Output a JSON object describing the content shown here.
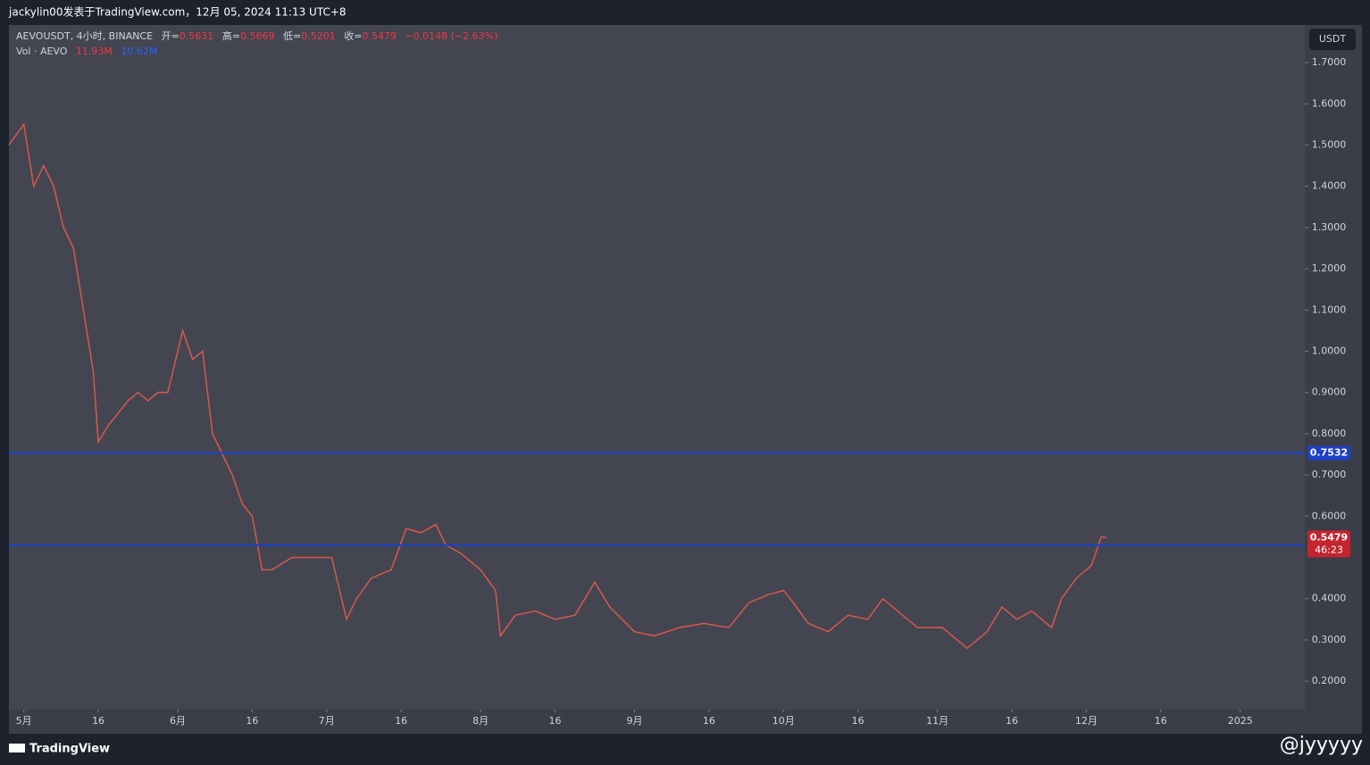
{
  "header": {
    "title": "jackylin00发表于TradingView.com，12月 05, 2024 11:13 UTC+8"
  },
  "legend": {
    "symbol": "AEVOUSDT, 4小时, BINANCE",
    "open_label": "开=",
    "open": "0.5631",
    "high_label": "高=",
    "high": "0.5669",
    "low_label": "低=",
    "low": "0.5201",
    "close_label": "收=",
    "close": "0.5479",
    "change": "−0.0148 (−2.63%)",
    "vol_label": "Vol · AEVO",
    "vol1": "11.93M",
    "vol2": "10.62M"
  },
  "currency": "USDT",
  "chart_data": {
    "type": "line",
    "color": "#d9574f",
    "xlim": [
      "2024-04-28",
      "2025-01-14"
    ],
    "ylim": [
      0.131,
      1.791
    ],
    "yticks": [
      {
        "value": 1.7,
        "label": "1.7000"
      },
      {
        "value": 1.6,
        "label": "1.6000"
      },
      {
        "value": 1.5,
        "label": "1.5000"
      },
      {
        "value": 1.4,
        "label": "1.4000"
      },
      {
        "value": 1.3,
        "label": "1.3000"
      },
      {
        "value": 1.2,
        "label": "1.2000"
      },
      {
        "value": 1.1,
        "label": "1.1000"
      },
      {
        "value": 1.0,
        "label": "1.0000"
      },
      {
        "value": 0.9,
        "label": "0.9000"
      },
      {
        "value": 0.8,
        "label": "0.8000"
      },
      {
        "value": 0.7,
        "label": "0.7000"
      },
      {
        "value": 0.6,
        "label": "0.6000"
      },
      {
        "value": 0.4,
        "label": "0.4000"
      },
      {
        "value": 0.3,
        "label": "0.3000"
      },
      {
        "value": 0.2,
        "label": "0.2000"
      }
    ],
    "xticks": [
      {
        "value": "2024-05-01",
        "label": "5月"
      },
      {
        "value": "2024-05-16",
        "label": "16"
      },
      {
        "value": "2024-06-01",
        "label": "6月"
      },
      {
        "value": "2024-06-16",
        "label": "16"
      },
      {
        "value": "2024-07-01",
        "label": "7月"
      },
      {
        "value": "2024-07-16",
        "label": "16"
      },
      {
        "value": "2024-08-01",
        "label": "8月"
      },
      {
        "value": "2024-08-16",
        "label": "16"
      },
      {
        "value": "2024-09-01",
        "label": "9月"
      },
      {
        "value": "2024-09-16",
        "label": "16"
      },
      {
        "value": "2024-10-01",
        "label": "10月"
      },
      {
        "value": "2024-10-16",
        "label": "16"
      },
      {
        "value": "2024-11-01",
        "label": "11月"
      },
      {
        "value": "2024-11-16",
        "label": "16"
      },
      {
        "value": "2024-12-01",
        "label": "12月"
      },
      {
        "value": "2024-12-16",
        "label": "16"
      },
      {
        "value": "2025-01-01",
        "label": "2025"
      }
    ],
    "x": [
      "2024-04-28",
      "2024-05-01",
      "2024-05-03",
      "2024-05-05",
      "2024-05-07",
      "2024-05-09",
      "2024-05-11",
      "2024-05-13",
      "2024-05-15",
      "2024-05-16",
      "2024-05-18",
      "2024-05-20",
      "2024-05-22",
      "2024-05-24",
      "2024-05-26",
      "2024-05-28",
      "2024-05-30",
      "2024-06-02",
      "2024-06-04",
      "2024-06-06",
      "2024-06-08",
      "2024-06-10",
      "2024-06-12",
      "2024-06-14",
      "2024-06-16",
      "2024-06-18",
      "2024-06-20",
      "2024-06-24",
      "2024-06-28",
      "2024-07-02",
      "2024-07-05",
      "2024-07-07",
      "2024-07-10",
      "2024-07-14",
      "2024-07-17",
      "2024-07-20",
      "2024-07-23",
      "2024-07-25",
      "2024-07-28",
      "2024-08-01",
      "2024-08-04",
      "2024-08-05",
      "2024-08-08",
      "2024-08-12",
      "2024-08-16",
      "2024-08-20",
      "2024-08-24",
      "2024-08-27",
      "2024-09-01",
      "2024-09-05",
      "2024-09-10",
      "2024-09-15",
      "2024-09-20",
      "2024-09-24",
      "2024-09-28",
      "2024-10-01",
      "2024-10-03",
      "2024-10-06",
      "2024-10-10",
      "2024-10-14",
      "2024-10-18",
      "2024-10-21",
      "2024-10-25",
      "2024-10-28",
      "2024-11-02",
      "2024-11-07",
      "2024-11-11",
      "2024-11-14",
      "2024-11-17",
      "2024-11-20",
      "2024-11-24",
      "2024-11-26",
      "2024-11-29",
      "2024-12-02",
      "2024-12-04",
      "2024-12-05"
    ],
    "values": [
      1.5,
      1.55,
      1.4,
      1.45,
      1.4,
      1.3,
      1.25,
      1.1,
      0.95,
      0.78,
      0.82,
      0.85,
      0.88,
      0.9,
      0.88,
      0.9,
      0.9,
      1.05,
      0.98,
      1.0,
      0.8,
      0.75,
      0.7,
      0.63,
      0.6,
      0.47,
      0.47,
      0.5,
      0.5,
      0.5,
      0.35,
      0.4,
      0.45,
      0.47,
      0.57,
      0.56,
      0.58,
      0.53,
      0.51,
      0.47,
      0.42,
      0.31,
      0.36,
      0.37,
      0.35,
      0.36,
      0.44,
      0.38,
      0.32,
      0.31,
      0.33,
      0.34,
      0.33,
      0.39,
      0.41,
      0.42,
      0.39,
      0.34,
      0.32,
      0.36,
      0.35,
      0.4,
      0.36,
      0.33,
      0.33,
      0.28,
      0.32,
      0.38,
      0.35,
      0.37,
      0.33,
      0.4,
      0.45,
      0.48,
      0.55,
      0.5479
    ],
    "hlines": [
      {
        "value": 0.7532,
        "label": "0.7532",
        "color": "#1e3fc8"
      },
      {
        "value": 0.5295,
        "label": "0.5295",
        "color": "#1e3fc8"
      }
    ],
    "last": {
      "value": 0.5479,
      "label": "0.5479",
      "countdown": "46:23",
      "color": "#c4242e"
    }
  },
  "footer": {
    "brand": "TradingView",
    "handle": "@jyyyyy"
  }
}
